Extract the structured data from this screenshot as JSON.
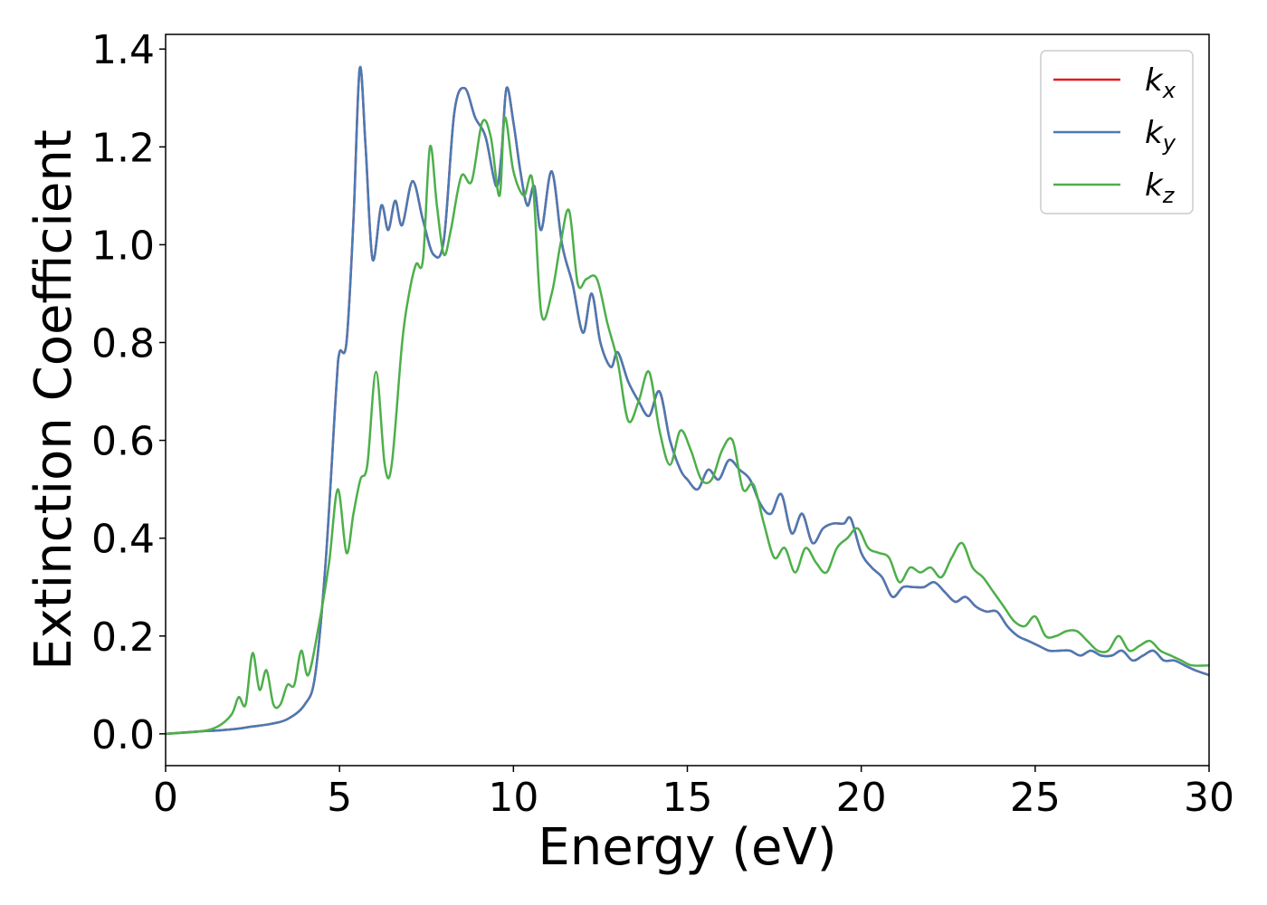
{
  "chart_data": {
    "type": "line",
    "title": "",
    "xlabel": "Energy (eV)",
    "ylabel": "Extinction Coefficient",
    "xlim": [
      0,
      30
    ],
    "ylim": [
      -0.065,
      1.43
    ],
    "xticks": [
      0,
      5,
      10,
      15,
      20,
      25,
      30
    ],
    "yticks": [
      0.0,
      0.2,
      0.4,
      0.6,
      0.8,
      1.0,
      1.2,
      1.4
    ],
    "xtick_labels": [
      "0",
      "5",
      "10",
      "15",
      "20",
      "25",
      "30"
    ],
    "ytick_labels": [
      "0.0",
      "0.2",
      "0.4",
      "0.6",
      "0.8",
      "1.0",
      "1.2",
      "1.4"
    ],
    "grid": false,
    "legend_position": "top-right",
    "series": [
      {
        "name": "k_x",
        "label_base": "k",
        "label_sub": "x",
        "color": "#e41a1c",
        "x": [
          0,
          1,
          1.5,
          2.0,
          2.5,
          3.0,
          3.5,
          4.0,
          4.3,
          4.6,
          4.9,
          5.0,
          5.2,
          5.4,
          5.58,
          5.75,
          5.95,
          6.2,
          6.4,
          6.6,
          6.8,
          7.1,
          7.4,
          7.7,
          8.0,
          8.3,
          8.6,
          8.9,
          9.2,
          9.5,
          9.65,
          9.8,
          10.0,
          10.2,
          10.4,
          10.6,
          10.8,
          11.1,
          11.4,
          11.7,
          12.0,
          12.25,
          12.5,
          12.8,
          13.0,
          13.3,
          13.6,
          13.9,
          14.2,
          14.5,
          14.8,
          15.0,
          15.3,
          15.6,
          15.9,
          16.2,
          16.5,
          16.8,
          17.1,
          17.4,
          17.7,
          18.0,
          18.3,
          18.6,
          18.9,
          19.2,
          19.5,
          19.7,
          20.0,
          20.3,
          20.6,
          20.9,
          21.2,
          21.5,
          21.8,
          22.1,
          22.4,
          22.7,
          23.0,
          23.3,
          23.6,
          23.9,
          24.2,
          24.5,
          24.8,
          25.1,
          25.4,
          25.7,
          26.0,
          26.3,
          26.6,
          26.9,
          27.2,
          27.5,
          27.8,
          28.1,
          28.4,
          28.7,
          29.0,
          29.3,
          29.6,
          30.0
        ],
        "y": [
          0.0,
          0.005,
          0.007,
          0.01,
          0.015,
          0.02,
          0.03,
          0.06,
          0.12,
          0.35,
          0.7,
          0.78,
          0.8,
          1.05,
          1.36,
          1.2,
          0.97,
          1.08,
          1.03,
          1.09,
          1.04,
          1.13,
          1.05,
          0.98,
          1.01,
          1.27,
          1.32,
          1.26,
          1.22,
          1.12,
          1.18,
          1.32,
          1.25,
          1.15,
          1.08,
          1.12,
          1.03,
          1.15,
          1.0,
          0.92,
          0.82,
          0.9,
          0.8,
          0.75,
          0.78,
          0.72,
          0.68,
          0.65,
          0.7,
          0.6,
          0.54,
          0.52,
          0.5,
          0.54,
          0.52,
          0.56,
          0.54,
          0.52,
          0.47,
          0.45,
          0.49,
          0.41,
          0.45,
          0.39,
          0.42,
          0.43,
          0.43,
          0.44,
          0.37,
          0.34,
          0.32,
          0.28,
          0.3,
          0.3,
          0.3,
          0.31,
          0.29,
          0.27,
          0.28,
          0.26,
          0.25,
          0.25,
          0.22,
          0.2,
          0.19,
          0.18,
          0.17,
          0.17,
          0.17,
          0.16,
          0.17,
          0.16,
          0.16,
          0.17,
          0.15,
          0.16,
          0.17,
          0.15,
          0.15,
          0.14,
          0.13,
          0.12
        ]
      },
      {
        "name": "k_y",
        "label_base": "k",
        "label_sub": "y",
        "color": "#4a7ab5",
        "x": [
          0,
          1,
          1.5,
          2.0,
          2.5,
          3.0,
          3.5,
          4.0,
          4.3,
          4.6,
          4.9,
          5.0,
          5.2,
          5.4,
          5.58,
          5.75,
          5.95,
          6.2,
          6.4,
          6.6,
          6.8,
          7.1,
          7.4,
          7.7,
          8.0,
          8.3,
          8.6,
          8.9,
          9.2,
          9.5,
          9.65,
          9.8,
          10.0,
          10.2,
          10.4,
          10.6,
          10.8,
          11.1,
          11.4,
          11.7,
          12.0,
          12.25,
          12.5,
          12.8,
          13.0,
          13.3,
          13.6,
          13.9,
          14.2,
          14.5,
          14.8,
          15.0,
          15.3,
          15.6,
          15.9,
          16.2,
          16.5,
          16.8,
          17.1,
          17.4,
          17.7,
          18.0,
          18.3,
          18.6,
          18.9,
          19.2,
          19.5,
          19.7,
          20.0,
          20.3,
          20.6,
          20.9,
          21.2,
          21.5,
          21.8,
          22.1,
          22.4,
          22.7,
          23.0,
          23.3,
          23.6,
          23.9,
          24.2,
          24.5,
          24.8,
          25.1,
          25.4,
          25.7,
          26.0,
          26.3,
          26.6,
          26.9,
          27.2,
          27.5,
          27.8,
          28.1,
          28.4,
          28.7,
          29.0,
          29.3,
          29.6,
          30.0
        ],
        "y": [
          0.0,
          0.005,
          0.007,
          0.01,
          0.015,
          0.02,
          0.03,
          0.06,
          0.12,
          0.35,
          0.7,
          0.78,
          0.8,
          1.05,
          1.36,
          1.2,
          0.97,
          1.08,
          1.03,
          1.09,
          1.04,
          1.13,
          1.05,
          0.98,
          1.01,
          1.27,
          1.32,
          1.26,
          1.22,
          1.12,
          1.18,
          1.32,
          1.25,
          1.15,
          1.08,
          1.12,
          1.03,
          1.15,
          1.0,
          0.92,
          0.82,
          0.9,
          0.8,
          0.75,
          0.78,
          0.72,
          0.68,
          0.65,
          0.7,
          0.6,
          0.54,
          0.52,
          0.5,
          0.54,
          0.52,
          0.56,
          0.54,
          0.52,
          0.47,
          0.45,
          0.49,
          0.41,
          0.45,
          0.39,
          0.42,
          0.43,
          0.43,
          0.44,
          0.37,
          0.34,
          0.32,
          0.28,
          0.3,
          0.3,
          0.3,
          0.31,
          0.29,
          0.27,
          0.28,
          0.26,
          0.25,
          0.25,
          0.22,
          0.2,
          0.19,
          0.18,
          0.17,
          0.17,
          0.17,
          0.16,
          0.17,
          0.16,
          0.16,
          0.17,
          0.15,
          0.16,
          0.17,
          0.15,
          0.15,
          0.14,
          0.13,
          0.12
        ]
      },
      {
        "name": "k_z",
        "label_base": "k",
        "label_sub": "z",
        "color": "#4daf4a",
        "x": [
          0,
          1,
          1.5,
          1.9,
          2.1,
          2.3,
          2.5,
          2.7,
          2.9,
          3.1,
          3.3,
          3.5,
          3.7,
          3.9,
          4.1,
          4.4,
          4.7,
          4.95,
          5.2,
          5.4,
          5.6,
          5.8,
          6.05,
          6.3,
          6.5,
          6.8,
          7.0,
          7.2,
          7.4,
          7.6,
          7.8,
          8.0,
          8.2,
          8.5,
          8.8,
          9.1,
          9.35,
          9.6,
          9.75,
          10.0,
          10.3,
          10.55,
          10.8,
          11.1,
          11.35,
          11.6,
          11.85,
          12.1,
          12.4,
          12.7,
          13.0,
          13.3,
          13.6,
          13.9,
          14.2,
          14.5,
          14.8,
          15.1,
          15.4,
          15.7,
          16.0,
          16.3,
          16.6,
          16.9,
          17.2,
          17.5,
          17.8,
          18.1,
          18.4,
          18.7,
          19.0,
          19.3,
          19.6,
          19.9,
          20.2,
          20.5,
          20.8,
          21.1,
          21.4,
          21.7,
          22.0,
          22.3,
          22.6,
          22.9,
          23.2,
          23.5,
          23.8,
          24.1,
          24.4,
          24.7,
          25.0,
          25.3,
          25.6,
          25.9,
          26.2,
          26.5,
          26.8,
          27.1,
          27.4,
          27.7,
          28.0,
          28.3,
          28.6,
          28.9,
          29.2,
          29.5,
          30.0
        ],
        "y": [
          0.0,
          0.005,
          0.015,
          0.04,
          0.075,
          0.06,
          0.165,
          0.09,
          0.13,
          0.06,
          0.06,
          0.1,
          0.1,
          0.17,
          0.12,
          0.22,
          0.35,
          0.5,
          0.37,
          0.45,
          0.52,
          0.55,
          0.74,
          0.55,
          0.55,
          0.8,
          0.9,
          0.96,
          0.97,
          1.2,
          1.08,
          0.98,
          1.03,
          1.14,
          1.13,
          1.25,
          1.22,
          1.1,
          1.26,
          1.15,
          1.1,
          1.13,
          0.86,
          0.9,
          1.0,
          1.07,
          0.92,
          0.93,
          0.93,
          0.84,
          0.76,
          0.64,
          0.68,
          0.74,
          0.62,
          0.55,
          0.62,
          0.58,
          0.52,
          0.52,
          0.58,
          0.6,
          0.5,
          0.51,
          0.43,
          0.36,
          0.38,
          0.33,
          0.38,
          0.35,
          0.33,
          0.38,
          0.4,
          0.42,
          0.38,
          0.37,
          0.36,
          0.31,
          0.34,
          0.33,
          0.34,
          0.32,
          0.36,
          0.39,
          0.34,
          0.32,
          0.29,
          0.26,
          0.23,
          0.22,
          0.24,
          0.2,
          0.2,
          0.21,
          0.21,
          0.19,
          0.17,
          0.17,
          0.2,
          0.17,
          0.18,
          0.19,
          0.17,
          0.16,
          0.15,
          0.14,
          0.14
        ]
      }
    ]
  }
}
